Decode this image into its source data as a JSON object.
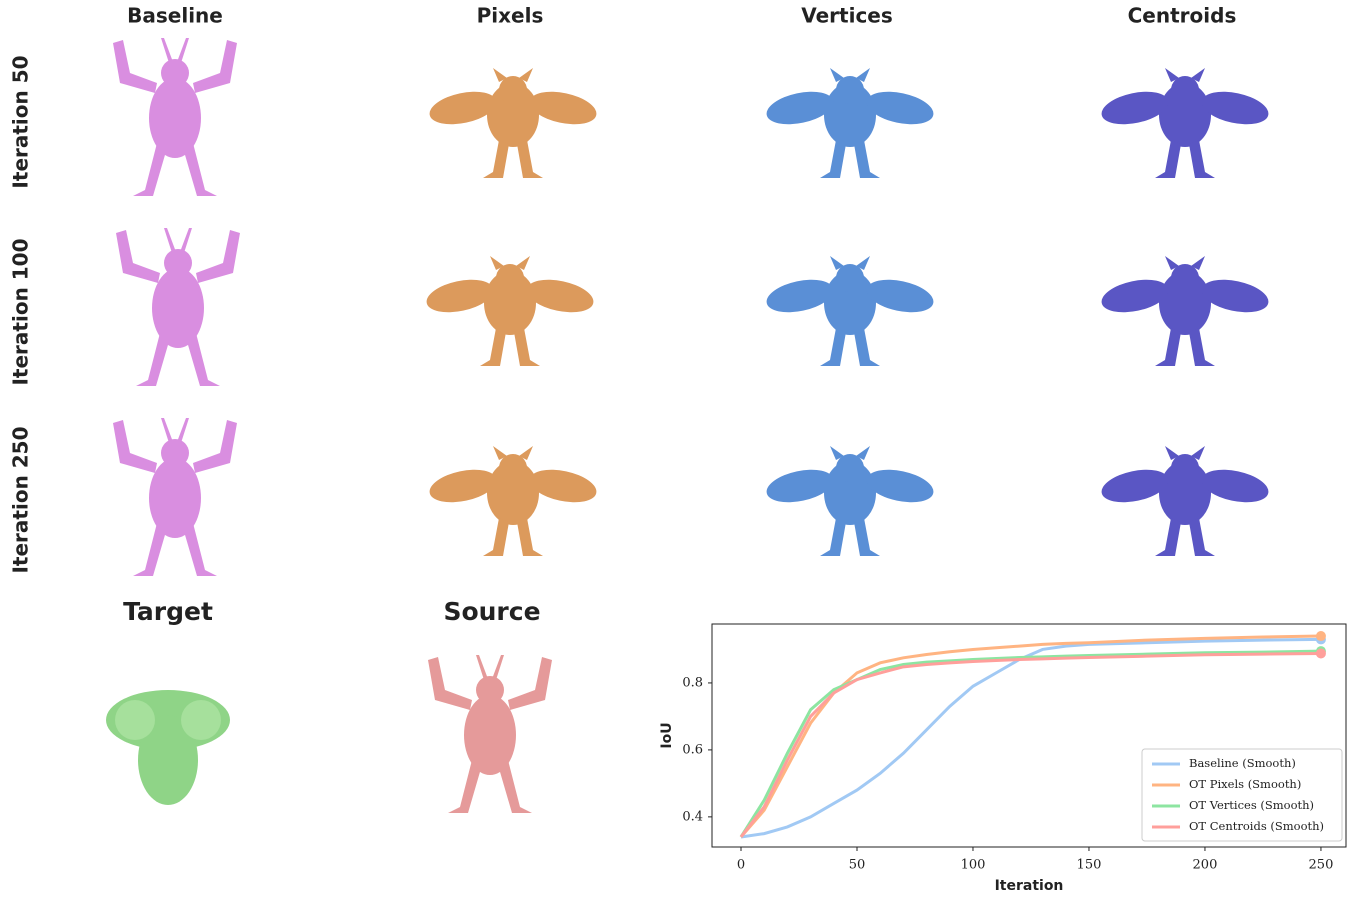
{
  "column_headers": [
    "Baseline",
    "Pixels",
    "Vertices",
    "Centroids"
  ],
  "row_labels": [
    "Iteration 50",
    "Iteration 100",
    "Iteration 250"
  ],
  "target_label": "Target",
  "source_label": "Source",
  "chart_data": {
    "type": "line",
    "xlabel": "Iteration",
    "ylabel": "IoU",
    "x": [
      0,
      10,
      20,
      30,
      40,
      50,
      60,
      70,
      80,
      90,
      100,
      110,
      120,
      130,
      140,
      150,
      175,
      200,
      225,
      250
    ],
    "series": [
      {
        "name": "Baseline (Smooth)",
        "color": "#a1c9f4",
        "values": [
          0.34,
          0.35,
          0.37,
          0.4,
          0.44,
          0.48,
          0.53,
          0.59,
          0.66,
          0.73,
          0.79,
          0.83,
          0.87,
          0.9,
          0.91,
          0.915,
          0.92,
          0.925,
          0.928,
          0.93
        ]
      },
      {
        "name": "OT Pixels (Smooth)",
        "color": "#ffb482",
        "values": [
          0.34,
          0.42,
          0.55,
          0.68,
          0.77,
          0.83,
          0.86,
          0.875,
          0.885,
          0.893,
          0.9,
          0.905,
          0.91,
          0.915,
          0.918,
          0.92,
          0.928,
          0.933,
          0.937,
          0.94
        ]
      },
      {
        "name": "OT Vertices (Smooth)",
        "color": "#8de5a1",
        "values": [
          0.34,
          0.45,
          0.59,
          0.72,
          0.78,
          0.81,
          0.84,
          0.855,
          0.862,
          0.866,
          0.87,
          0.873,
          0.876,
          0.878,
          0.88,
          0.882,
          0.886,
          0.89,
          0.892,
          0.895
        ]
      },
      {
        "name": "OT Centroids (Smooth)",
        "color": "#ff9f9b",
        "values": [
          0.34,
          0.43,
          0.57,
          0.7,
          0.77,
          0.81,
          0.83,
          0.848,
          0.855,
          0.86,
          0.864,
          0.867,
          0.87,
          0.872,
          0.874,
          0.876,
          0.88,
          0.884,
          0.886,
          0.888
        ]
      }
    ],
    "xlim": [
      -12.5,
      260.8
    ],
    "ylim": [
      0.31,
      0.976
    ],
    "xticks": [
      0,
      50,
      100,
      150,
      200,
      250
    ],
    "yticks": [
      0.4,
      0.6,
      0.8
    ],
    "grid": false,
    "legend": "lower right"
  }
}
